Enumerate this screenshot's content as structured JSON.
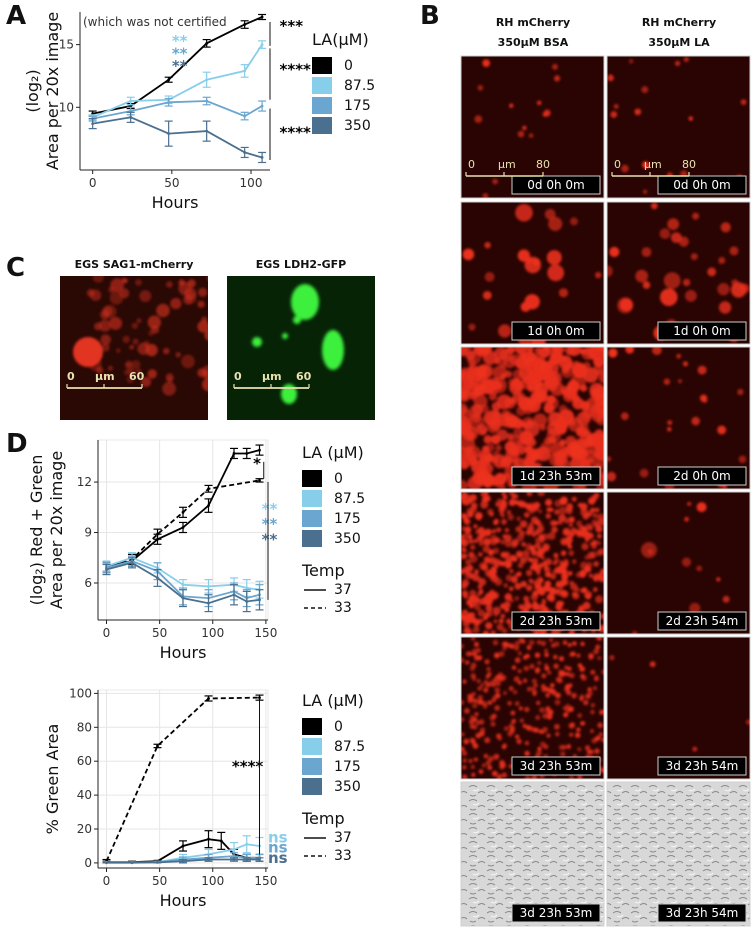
{
  "panel_labels": {
    "a": "A",
    "b": "B",
    "c": "C",
    "d": "D"
  },
  "colors": {
    "la0": "#000000",
    "la87": "#87ceeb",
    "la175": "#6aa6cf",
    "la350": "#4a6f8f",
    "red": "#d42a1a",
    "green": "#2ee02e"
  },
  "panel_b": {
    "col_heads": [
      [
        "RH mCherry",
        "350µM BSA"
      ],
      [
        "RH mCherry",
        "350µM LA"
      ]
    ],
    "timestamps": [
      [
        "0d 0h 0m",
        "0d 0h 0m"
      ],
      [
        "1d 0h 0m",
        "1d 0h 0m"
      ],
      [
        "1d 23h 53m",
        "2d 0h 0m"
      ],
      [
        "2d 23h 53m",
        "2d 23h 54m"
      ],
      [
        "3d 23h 53m",
        "3d 23h 54m"
      ],
      [
        "3d 23h 53m",
        "3d 23h 54m"
      ]
    ],
    "scale": {
      "start": "0",
      "unit": "µm",
      "end": "80"
    }
  },
  "panel_c": {
    "heads": [
      "EGS SAG1-mCherry",
      "EGS LDH2-GFP"
    ],
    "scale": {
      "start": "0",
      "unit": "µm",
      "end": "60"
    }
  },
  "chart_data": [
    {
      "id": "A",
      "type": "line",
      "ylabel_line1": "(log₂)",
      "ylabel_line2": "Area per 20x image",
      "xlabel": "Hours",
      "note": "(which was not certified",
      "xlim": [
        -8,
        112
      ],
      "ylim": [
        5,
        17.6
      ],
      "xticks": [
        0,
        50,
        100
      ],
      "yticks": [
        10,
        15
      ],
      "legend_title": "LA(µM)",
      "series": [
        {
          "name": "0",
          "color": "#000000",
          "x": [
            0,
            24,
            48,
            72,
            96,
            107
          ],
          "y": [
            9.5,
            10.1,
            12.2,
            15.1,
            16.6,
            17.2
          ],
          "err": [
            0.2,
            0.2,
            0.2,
            0.3,
            0.3,
            0.2
          ]
        },
        {
          "name": "87.5",
          "color": "#87ceeb",
          "x": [
            0,
            24,
            48,
            72,
            96,
            107
          ],
          "y": [
            9.2,
            10.5,
            10.6,
            12.2,
            12.9,
            15.0
          ],
          "err": [
            0.2,
            0.3,
            0.3,
            0.6,
            0.5,
            0.3
          ]
        },
        {
          "name": "175",
          "color": "#6aa6cf",
          "x": [
            0,
            24,
            48,
            72,
            96,
            107
          ],
          "y": [
            9.1,
            9.7,
            10.4,
            10.5,
            9.3,
            10.1
          ],
          "err": [
            0.2,
            0.3,
            0.3,
            0.3,
            0.3,
            0.4
          ]
        },
        {
          "name": "350",
          "color": "#4a6f8f",
          "x": [
            0,
            24,
            48,
            72,
            96,
            107
          ],
          "y": [
            8.7,
            9.2,
            7.9,
            8.1,
            6.4,
            6.0
          ],
          "err": [
            0.4,
            0.4,
            1.0,
            0.8,
            0.4,
            0.4
          ]
        }
      ],
      "annotations": [
        {
          "text": "***",
          "color": "#000000",
          "x": 118,
          "y": 16.1
        },
        {
          "text": "****",
          "color": "#000000",
          "x": 118,
          "y": 12.6
        },
        {
          "text": "****",
          "color": "#000000",
          "x": 118,
          "y": 7.6
        },
        {
          "text": "**",
          "color": "#87ceeb",
          "x": 50,
          "y": 14.9
        },
        {
          "text": "**",
          "color": "#6aa6cf",
          "x": 50,
          "y": 13.9
        },
        {
          "text": "**",
          "color": "#4a6f8f",
          "x": 50,
          "y": 12.9
        }
      ]
    },
    {
      "id": "D1",
      "type": "line",
      "ylabel_line1": "(log₂) Red + Green",
      "ylabel_line2": "Area per 20x image",
      "xlabel": "Hours",
      "xlim": [
        -8,
        152
      ],
      "ylim": [
        3.8,
        14.5
      ],
      "xticks": [
        0,
        50,
        100,
        150
      ],
      "yticks": [
        6,
        9,
        12
      ],
      "grid": true,
      "legend_title": "LA (µM)",
      "legend_items": [
        "0",
        "87.5",
        "175",
        "350"
      ],
      "temp_title": "Temp",
      "temp_items": [
        "37",
        "33"
      ],
      "series": [
        {
          "name": "0",
          "temp": "37",
          "color": "#000000",
          "x": [
            0,
            24,
            48,
            72,
            96,
            120,
            132,
            144
          ],
          "y": [
            7.0,
            7.3,
            8.6,
            9.3,
            10.6,
            13.7,
            13.7,
            13.9
          ],
          "err": [
            0.3,
            0.3,
            0.3,
            0.3,
            0.4,
            0.3,
            0.3,
            0.3
          ]
        },
        {
          "name": "0",
          "temp": "33",
          "color": "#000000",
          "x": [
            0,
            24,
            48,
            72,
            96,
            144
          ],
          "y": [
            6.9,
            7.4,
            8.9,
            10.2,
            11.6,
            12.1
          ],
          "err": [
            0.3,
            0.3,
            0.3,
            0.3,
            0.2,
            0.1
          ]
        },
        {
          "name": "87.5",
          "temp": "37",
          "color": "#87ceeb",
          "x": [
            0,
            24,
            48,
            72,
            96,
            120,
            132,
            144
          ],
          "y": [
            7.0,
            7.5,
            6.9,
            5.9,
            5.8,
            5.9,
            5.7,
            5.6
          ],
          "err": [
            0.3,
            0.3,
            0.3,
            0.3,
            0.4,
            0.4,
            0.5,
            0.5
          ]
        },
        {
          "name": "175",
          "temp": "37",
          "color": "#6aa6cf",
          "x": [
            0,
            24,
            48,
            72,
            96,
            120,
            132,
            144
          ],
          "y": [
            6.9,
            7.3,
            6.7,
            5.2,
            5.1,
            5.5,
            5.1,
            5.3
          ],
          "err": [
            0.3,
            0.3,
            0.5,
            0.5,
            0.5,
            0.5,
            0.5,
            0.6
          ]
        },
        {
          "name": "350",
          "temp": "37",
          "color": "#4a6f8f",
          "x": [
            0,
            24,
            48,
            72,
            96,
            120,
            132,
            144
          ],
          "y": [
            6.8,
            7.2,
            6.3,
            5.1,
            4.8,
            5.3,
            4.9,
            5.0
          ],
          "err": [
            0.3,
            0.3,
            0.5,
            0.5,
            0.5,
            0.6,
            0.6,
            0.6
          ]
        }
      ],
      "annotations": [
        {
          "text": "*",
          "color": "#000000",
          "x": 138,
          "y": 12.8
        },
        {
          "text": "**",
          "color": "#87ceeb",
          "x": 146,
          "y": 10.1
        },
        {
          "text": "**",
          "color": "#6aa6cf",
          "x": 146,
          "y": 9.2
        },
        {
          "text": "**",
          "color": "#4a6f8f",
          "x": 146,
          "y": 8.3
        }
      ]
    },
    {
      "id": "D2",
      "type": "line",
      "ylabel": "% Green Area",
      "xlabel": "Hours",
      "xlim": [
        -8,
        152
      ],
      "ylim": [
        -3,
        102
      ],
      "xticks": [
        0,
        50,
        100,
        150
      ],
      "yticks": [
        0,
        20,
        40,
        60,
        80,
        100
      ],
      "grid": true,
      "legend_title": "LA (µM)",
      "legend_items": [
        "0",
        "87.5",
        "175",
        "350"
      ],
      "temp_title": "Temp",
      "temp_items": [
        "37",
        "33"
      ],
      "series": [
        {
          "name": "0",
          "temp": "33",
          "color": "#000000",
          "x": [
            0,
            48,
            96,
            144
          ],
          "y": [
            1,
            69,
            97,
            97.5
          ],
          "err": [
            1,
            1,
            1.5,
            1.5
          ]
        },
        {
          "name": "0",
          "temp": "37",
          "color": "#000000",
          "x": [
            0,
            24,
            48,
            72,
            96,
            108,
            120,
            132,
            144
          ],
          "y": [
            0.5,
            0.5,
            1,
            10,
            14,
            13,
            5,
            3,
            3
          ],
          "err": [
            0.5,
            0.5,
            0.5,
            3,
            5,
            5,
            3,
            2,
            2
          ]
        },
        {
          "name": "87.5",
          "temp": "37",
          "color": "#87ceeb",
          "x": [
            0,
            24,
            48,
            72,
            96,
            120,
            132,
            144
          ],
          "y": [
            0.3,
            0.3,
            0.5,
            3,
            5,
            8,
            11,
            10
          ],
          "err": [
            0.3,
            0.3,
            0.5,
            2,
            3,
            4,
            5,
            5
          ]
        },
        {
          "name": "175",
          "temp": "37",
          "color": "#6aa6cf",
          "x": [
            0,
            24,
            48,
            72,
            96,
            120,
            132,
            144
          ],
          "y": [
            0.2,
            0.2,
            0.4,
            2,
            3,
            4,
            3,
            3
          ],
          "err": [
            0.2,
            0.2,
            0.3,
            1.5,
            2,
            2,
            2,
            2
          ]
        },
        {
          "name": "350",
          "temp": "37",
          "color": "#4a6f8f",
          "x": [
            0,
            24,
            48,
            72,
            96,
            120,
            132,
            144
          ],
          "y": [
            0.1,
            0.1,
            0.3,
            1,
            2,
            2,
            2,
            2
          ],
          "err": [
            0.1,
            0.1,
            0.2,
            1,
            1,
            1,
            1,
            1
          ]
        }
      ],
      "annotations": [
        {
          "text": "****",
          "color": "#000000",
          "x": 118,
          "y": 54
        },
        {
          "text": "ns",
          "color": "#87ceeb",
          "x": 152,
          "y": 12
        },
        {
          "text": "ns",
          "color": "#6aa6cf",
          "x": 152,
          "y": 6
        },
        {
          "text": "ns",
          "color": "#4a6f8f",
          "x": 152,
          "y": 0
        }
      ]
    }
  ]
}
